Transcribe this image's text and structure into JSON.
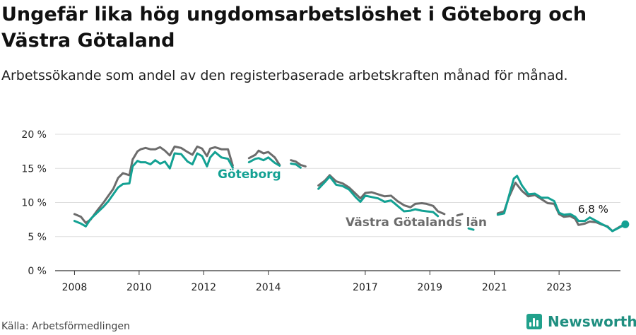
{
  "title": "Ungefär lika hög ungdomsarbetslöshet i Göteborg och Västra Götaland",
  "subtitle": "Arbetssökande som andel av den registerbaserade arbetskraften månad för månad.",
  "source": "Källa: Arbetsförmedlingen",
  "brand": "Newsworthy",
  "colors": {
    "goteborg": "#13a193",
    "vastra_gotaland": "#6c6c6c",
    "grid": "#dddddd",
    "axis": "#333333",
    "brand": "#21a18c"
  },
  "chart_data": {
    "type": "line",
    "xlim": [
      2007.4,
      2024.9
    ],
    "ylim": [
      0,
      20
    ],
    "x_ticks": [
      2008,
      2010,
      2012,
      2014,
      2017,
      2019,
      2021,
      2023
    ],
    "x_tick_labels": [
      "2008",
      "2010",
      "2012",
      "2014",
      "2017",
      "2019",
      "2021",
      "2023"
    ],
    "y_ticks": [
      0,
      5,
      10,
      15,
      20
    ],
    "y_tick_labels": [
      "0 %",
      "5 %",
      "10 %",
      "15 %",
      "20 %"
    ],
    "series": [
      {
        "name": "Västra Götalands län",
        "key": "vastra_gotaland",
        "label": "Västra Götalands län",
        "points": [
          [
            2008.0,
            8.3
          ],
          [
            2008.2,
            7.9
          ],
          [
            2008.35,
            7.0
          ],
          [
            2008.5,
            7.5
          ],
          [
            2008.7,
            8.8
          ],
          [
            2008.9,
            10.0
          ],
          [
            2009.05,
            11.0
          ],
          [
            2009.2,
            12.0
          ],
          [
            2009.35,
            13.6
          ],
          [
            2009.5,
            14.3
          ],
          [
            2009.7,
            14.0
          ],
          [
            2009.8,
            16.3
          ],
          [
            2009.95,
            17.5
          ],
          [
            2010.05,
            17.8
          ],
          [
            2010.2,
            18.0
          ],
          [
            2010.35,
            17.8
          ],
          [
            2010.5,
            17.8
          ],
          [
            2010.65,
            18.1
          ],
          [
            2010.8,
            17.6
          ],
          [
            2010.95,
            16.9
          ],
          [
            2011.1,
            18.2
          ],
          [
            2011.3,
            18.0
          ],
          [
            2011.5,
            17.4
          ],
          [
            2011.65,
            17.0
          ],
          [
            2011.8,
            18.2
          ],
          [
            2011.95,
            17.9
          ],
          [
            2012.1,
            16.8
          ],
          [
            2012.2,
            17.9
          ],
          [
            2012.35,
            18.1
          ],
          [
            2012.55,
            17.8
          ],
          [
            2012.75,
            17.8
          ],
          [
            2012.9,
            15.4
          ],
          null,
          [
            2013.4,
            16.5
          ],
          [
            2013.6,
            17.0
          ],
          [
            2013.7,
            17.6
          ],
          [
            2013.85,
            17.2
          ],
          [
            2014.0,
            17.4
          ],
          [
            2014.2,
            16.6
          ],
          [
            2014.35,
            15.5
          ],
          null,
          [
            2014.7,
            16.2
          ],
          [
            2014.85,
            16.0
          ],
          [
            2015.0,
            15.5
          ],
          [
            2015.15,
            15.3
          ],
          null,
          [
            2015.55,
            12.5
          ],
          [
            2015.75,
            13.2
          ],
          [
            2015.9,
            14.0
          ],
          [
            2016.1,
            13.1
          ],
          [
            2016.3,
            12.8
          ],
          [
            2016.5,
            12.2
          ],
          [
            2016.7,
            11.3
          ],
          [
            2016.85,
            10.6
          ],
          [
            2017.0,
            11.4
          ],
          [
            2017.2,
            11.5
          ],
          [
            2017.4,
            11.2
          ],
          [
            2017.6,
            10.9
          ],
          [
            2017.8,
            11.0
          ],
          [
            2018.0,
            10.2
          ],
          [
            2018.2,
            9.6
          ],
          [
            2018.4,
            9.3
          ],
          [
            2018.55,
            9.8
          ],
          [
            2018.75,
            9.9
          ],
          [
            2018.9,
            9.8
          ],
          [
            2019.1,
            9.5
          ],
          [
            2019.25,
            8.7
          ],
          [
            2019.45,
            8.3
          ],
          null,
          [
            2019.85,
            8.1
          ],
          [
            2020.0,
            8.3
          ],
          null,
          [
            2021.1,
            8.4
          ],
          [
            2021.3,
            8.7
          ],
          [
            2021.45,
            10.8
          ],
          [
            2021.65,
            12.9
          ],
          [
            2021.85,
            11.7
          ],
          [
            2022.05,
            10.9
          ],
          [
            2022.25,
            11.1
          ],
          [
            2022.45,
            10.5
          ],
          [
            2022.65,
            9.9
          ],
          [
            2022.85,
            9.8
          ],
          [
            2023.0,
            8.3
          ],
          [
            2023.15,
            7.9
          ],
          [
            2023.35,
            8.0
          ],
          [
            2023.5,
            7.6
          ],
          [
            2023.6,
            6.7
          ],
          [
            2023.8,
            6.9
          ],
          [
            2023.95,
            7.2
          ],
          [
            2024.15,
            7.1
          ],
          [
            2024.3,
            6.8
          ],
          [
            2024.5,
            6.5
          ],
          [
            2024.65,
            5.8
          ],
          [
            2024.9,
            6.5
          ],
          [
            2025.05,
            6.8
          ]
        ]
      },
      {
        "name": "Göteborg",
        "key": "goteborg",
        "label": "Göteborg",
        "end_label": "6,8 %",
        "points": [
          [
            2008.0,
            7.3
          ],
          [
            2008.2,
            6.9
          ],
          [
            2008.35,
            6.5
          ],
          [
            2008.5,
            7.6
          ],
          [
            2008.7,
            8.5
          ],
          [
            2008.9,
            9.4
          ],
          [
            2009.05,
            10.2
          ],
          [
            2009.2,
            11.2
          ],
          [
            2009.35,
            12.2
          ],
          [
            2009.5,
            12.7
          ],
          [
            2009.7,
            12.8
          ],
          [
            2009.8,
            15.3
          ],
          [
            2009.95,
            16.1
          ],
          [
            2010.05,
            15.9
          ],
          [
            2010.2,
            15.9
          ],
          [
            2010.35,
            15.6
          ],
          [
            2010.5,
            16.2
          ],
          [
            2010.65,
            15.7
          ],
          [
            2010.8,
            16.0
          ],
          [
            2010.95,
            15.0
          ],
          [
            2011.1,
            17.2
          ],
          [
            2011.3,
            17.1
          ],
          [
            2011.5,
            16.0
          ],
          [
            2011.65,
            15.6
          ],
          [
            2011.8,
            17.2
          ],
          [
            2011.95,
            16.8
          ],
          [
            2012.1,
            15.3
          ],
          [
            2012.2,
            16.6
          ],
          [
            2012.35,
            17.4
          ],
          [
            2012.55,
            16.6
          ],
          [
            2012.75,
            16.4
          ],
          [
            2012.9,
            15.1
          ],
          null,
          [
            2013.4,
            15.9
          ],
          [
            2013.6,
            16.4
          ],
          [
            2013.7,
            16.5
          ],
          [
            2013.85,
            16.2
          ],
          [
            2014.0,
            16.6
          ],
          [
            2014.2,
            15.8
          ],
          [
            2014.35,
            15.4
          ],
          null,
          [
            2014.7,
            15.7
          ],
          [
            2014.85,
            15.6
          ],
          [
            2015.0,
            15.1
          ],
          null,
          [
            2015.55,
            12.0
          ],
          [
            2015.75,
            13.0
          ],
          [
            2015.9,
            13.8
          ],
          [
            2016.1,
            12.6
          ],
          [
            2016.3,
            12.4
          ],
          [
            2016.5,
            11.9
          ],
          [
            2016.7,
            10.8
          ],
          [
            2016.85,
            10.1
          ],
          [
            2017.0,
            11.0
          ],
          [
            2017.2,
            10.8
          ],
          [
            2017.4,
            10.6
          ],
          [
            2017.6,
            10.1
          ],
          [
            2017.8,
            10.3
          ],
          [
            2018.0,
            9.5
          ],
          [
            2018.2,
            8.7
          ],
          [
            2018.4,
            8.8
          ],
          [
            2018.55,
            9.0
          ],
          [
            2018.75,
            8.8
          ],
          [
            2018.9,
            8.7
          ],
          [
            2019.1,
            8.6
          ],
          [
            2019.25,
            8.0
          ],
          null,
          [
            2020.2,
            6.2
          ],
          [
            2020.35,
            6.0
          ],
          null,
          [
            2021.1,
            8.2
          ],
          [
            2021.3,
            8.4
          ],
          [
            2021.45,
            11.0
          ],
          [
            2021.6,
            13.5
          ],
          [
            2021.7,
            13.9
          ],
          [
            2021.85,
            12.5
          ],
          [
            2022.05,
            11.2
          ],
          [
            2022.25,
            11.3
          ],
          [
            2022.45,
            10.7
          ],
          [
            2022.65,
            10.7
          ],
          [
            2022.85,
            10.2
          ],
          [
            2023.0,
            8.5
          ],
          [
            2023.15,
            8.2
          ],
          [
            2023.35,
            8.3
          ],
          [
            2023.5,
            7.9
          ],
          [
            2023.6,
            7.3
          ],
          [
            2023.8,
            7.3
          ],
          [
            2023.95,
            7.8
          ],
          [
            2024.15,
            7.3
          ],
          [
            2024.3,
            6.9
          ],
          [
            2024.5,
            6.4
          ],
          [
            2024.65,
            5.8
          ],
          [
            2024.9,
            6.4
          ],
          [
            2025.05,
            6.8
          ]
        ]
      }
    ]
  }
}
